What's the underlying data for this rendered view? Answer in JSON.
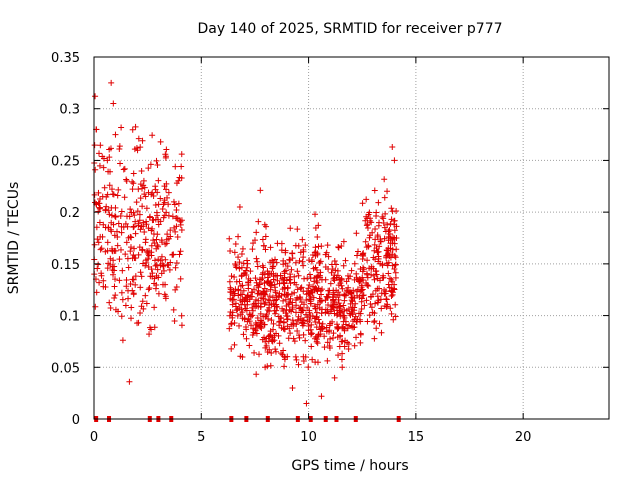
{
  "chart_data": {
    "type": "scatter",
    "title": "Day 140 of 2025, SRMTID for receiver p777",
    "xlabel": "GPS time / hours",
    "ylabel": "SRMTID / TECUs",
    "xlim": [
      0,
      24
    ],
    "ylim": [
      0,
      0.35
    ],
    "x_ticks": [
      0,
      5,
      10,
      15,
      20
    ],
    "x_tick_labels": [
      "0",
      "5",
      "10",
      "15",
      "20"
    ],
    "y_ticks": [
      0,
      0.05,
      0.1,
      0.15,
      0.2,
      0.25,
      0.3,
      0.35
    ],
    "y_tick_labels": [
      "0",
      "0.05",
      "0.1",
      "0.15",
      "0.2",
      "0.25",
      "0.3",
      "0.35"
    ],
    "grid": true,
    "marker": "+",
    "color": "#e00000",
    "series": [
      {
        "name": "SRMTID",
        "segments": [
          {
            "x_start": 0.0,
            "x_end": 4.1,
            "y_min": 0.035,
            "y_max": 0.325,
            "count": 380
          },
          {
            "x_start": 6.3,
            "x_end": 7.5,
            "y_min": 0.03,
            "y_max": 0.205,
            "count": 130
          },
          {
            "x_start": 7.5,
            "x_end": 10.5,
            "y_min": 0.015,
            "y_max": 0.22,
            "count": 420
          },
          {
            "x_start": 10.5,
            "x_end": 12.5,
            "y_min": 0.02,
            "y_max": 0.2,
            "count": 240
          },
          {
            "x_start": 12.5,
            "x_end": 14.1,
            "y_min": 0.045,
            "y_max": 0.265,
            "count": 200
          }
        ],
        "notable_points": [
          {
            "x": 0.05,
            "y": 0.312
          },
          {
            "x": 0.1,
            "y": 0.28
          },
          {
            "x": 0.45,
            "y": 0.243
          },
          {
            "x": 0.8,
            "y": 0.325
          },
          {
            "x": 0.9,
            "y": 0.305
          },
          {
            "x": 1.0,
            "y": 0.275
          },
          {
            "x": 1.65,
            "y": 0.036
          },
          {
            "x": 2.0,
            "y": 0.262
          },
          {
            "x": 2.85,
            "y": 0.225
          },
          {
            "x": 3.2,
            "y": 0.203
          },
          {
            "x": 6.8,
            "y": 0.205
          },
          {
            "x": 7.75,
            "y": 0.221
          },
          {
            "x": 9.25,
            "y": 0.03
          },
          {
            "x": 9.9,
            "y": 0.015
          },
          {
            "x": 10.3,
            "y": 0.198
          },
          {
            "x": 10.6,
            "y": 0.022
          },
          {
            "x": 13.55,
            "y": 0.214
          },
          {
            "x": 13.9,
            "y": 0.263
          },
          {
            "x": 14.0,
            "y": 0.25
          }
        ],
        "zero_points_x": [
          0.1,
          0.7,
          2.6,
          3.0,
          3.6,
          6.4,
          7.1,
          8.1,
          9.5,
          10.1,
          10.8,
          11.3,
          12.2,
          14.2
        ]
      }
    ]
  }
}
